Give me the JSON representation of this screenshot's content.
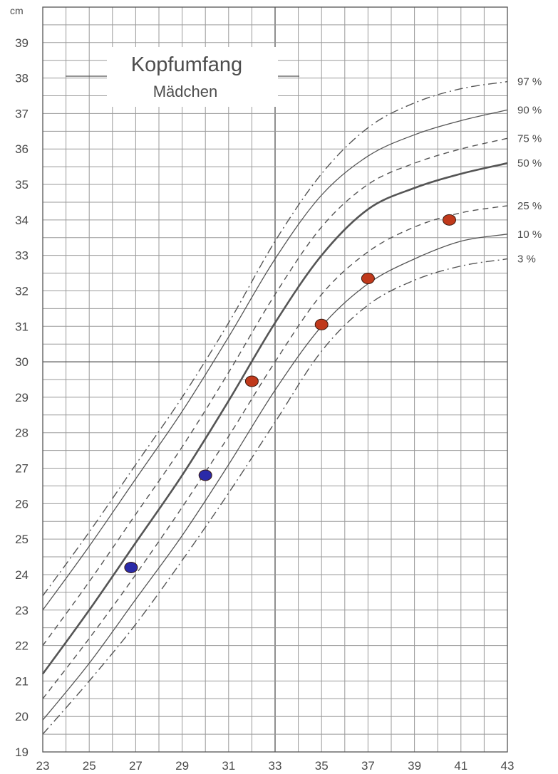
{
  "chart_data": {
    "type": "line",
    "title": "Kopfumfang",
    "subtitle": "Mädchen",
    "ylabel": "cm",
    "xlabel": "",
    "xlim": [
      23,
      43
    ],
    "ylim": [
      19,
      40
    ],
    "x_ticks": [
      23,
      25,
      27,
      29,
      31,
      33,
      35,
      37,
      39,
      41,
      43
    ],
    "y_ticks": [
      19,
      20,
      21,
      22,
      23,
      24,
      25,
      26,
      27,
      28,
      29,
      30,
      31,
      32,
      33,
      34,
      35,
      36,
      37,
      38,
      39
    ],
    "grid": true,
    "x": [
      23,
      25,
      27,
      29,
      31,
      33,
      35,
      37,
      39,
      41,
      43
    ],
    "series": [
      {
        "name": "97 %",
        "style": "dashdot",
        "values": [
          23.4,
          25.2,
          27.1,
          29.0,
          31.1,
          33.4,
          35.3,
          36.6,
          37.3,
          37.7,
          37.9
        ]
      },
      {
        "name": "90 %",
        "style": "solid-thin",
        "values": [
          23.0,
          24.8,
          26.7,
          28.6,
          30.7,
          32.9,
          34.7,
          35.8,
          36.4,
          36.8,
          37.1
        ]
      },
      {
        "name": "75 %",
        "style": "dashed",
        "values": [
          22.0,
          23.8,
          25.7,
          27.6,
          29.7,
          31.9,
          33.8,
          35.0,
          35.6,
          36.0,
          36.3
        ]
      },
      {
        "name": "50 %",
        "style": "solid-thick",
        "values": [
          21.2,
          23.0,
          24.9,
          26.8,
          28.9,
          31.1,
          33.0,
          34.3,
          34.9,
          35.3,
          35.6
        ]
      },
      {
        "name": "25 %",
        "style": "dashed",
        "values": [
          20.5,
          22.2,
          24.0,
          25.9,
          27.9,
          30.0,
          31.9,
          33.1,
          33.8,
          34.2,
          34.4
        ]
      },
      {
        "name": "10 %",
        "style": "solid-thin",
        "values": [
          19.9,
          21.5,
          23.3,
          25.1,
          27.1,
          29.2,
          31.0,
          32.2,
          32.9,
          33.4,
          33.6
        ]
      },
      {
        "name": "3 %",
        "style": "dashdot",
        "values": [
          19.5,
          21.0,
          22.6,
          24.4,
          26.3,
          28.3,
          30.3,
          31.6,
          32.3,
          32.7,
          32.9
        ]
      }
    ],
    "points": [
      {
        "x": 26.8,
        "y": 24.2,
        "color": "#2a2aa8"
      },
      {
        "x": 30.0,
        "y": 26.8,
        "color": "#2a2aa8"
      },
      {
        "x": 32.0,
        "y": 29.45,
        "color": "#c0391b"
      },
      {
        "x": 35.0,
        "y": 31.05,
        "color": "#c0391b"
      },
      {
        "x": 37.0,
        "y": 32.35,
        "color": "#c0391b"
      },
      {
        "x": 40.5,
        "y": 34.0,
        "color": "#c0391b"
      }
    ]
  }
}
